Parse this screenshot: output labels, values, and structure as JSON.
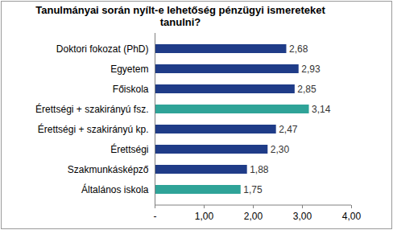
{
  "chart_data": {
    "type": "bar",
    "orientation": "horizontal",
    "title": "Tanulmányai során nyílt-e lehetőség pénzügyi ismereteket tanulni?",
    "categories": [
      "Doktori fokozat (PhD)",
      "Egyetem",
      "Főiskola",
      "Érettségi + szakirányú fsz.",
      "Érettségi + szakirányú kp.",
      "Érettségi",
      "Szakmunkásképző",
      "Általános iskola"
    ],
    "values": [
      2.68,
      2.93,
      2.85,
      3.14,
      2.47,
      2.3,
      1.88,
      1.75
    ],
    "value_labels": [
      "2,68",
      "2,93",
      "2,85",
      "3,14",
      "2,47",
      "2,30",
      "1,88",
      "1,75"
    ],
    "colors": [
      "#1f3c88",
      "#1f3c88",
      "#1f3c88",
      "#2fa398",
      "#1f3c88",
      "#1f3c88",
      "#1f3c88",
      "#2fa398"
    ],
    "data_labels": true,
    "grid": false,
    "xlim": [
      0,
      4
    ],
    "xticks": [
      {
        "value": 0,
        "label": "-"
      },
      {
        "value": 1,
        "label": "1,00"
      },
      {
        "value": 2,
        "label": "2,00"
      },
      {
        "value": 3,
        "label": "3,00"
      },
      {
        "value": 4,
        "label": "4,00"
      }
    ]
  }
}
